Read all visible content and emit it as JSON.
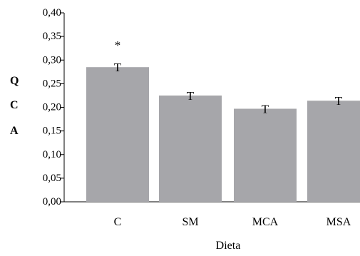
{
  "chart_data": {
    "type": "bar",
    "categories": [
      "C",
      "SM",
      "MCA",
      "MSA"
    ],
    "values": [
      0.285,
      0.225,
      0.197,
      0.214
    ],
    "ylim": [
      0,
      0.4
    ],
    "yticks": [
      "0,00",
      "0,05",
      "0,10",
      "0,15",
      "0,20",
      "0,25",
      "0,30",
      "0,35",
      "0,40"
    ],
    "xlabel": "Dieta",
    "ylabel_letters": [
      "Q",
      "C",
      "A"
    ],
    "error_marker": "T",
    "annotations": [
      {
        "category": "C",
        "text": "*"
      }
    ],
    "bar_color": "#a6a6aa",
    "grid": false
  }
}
